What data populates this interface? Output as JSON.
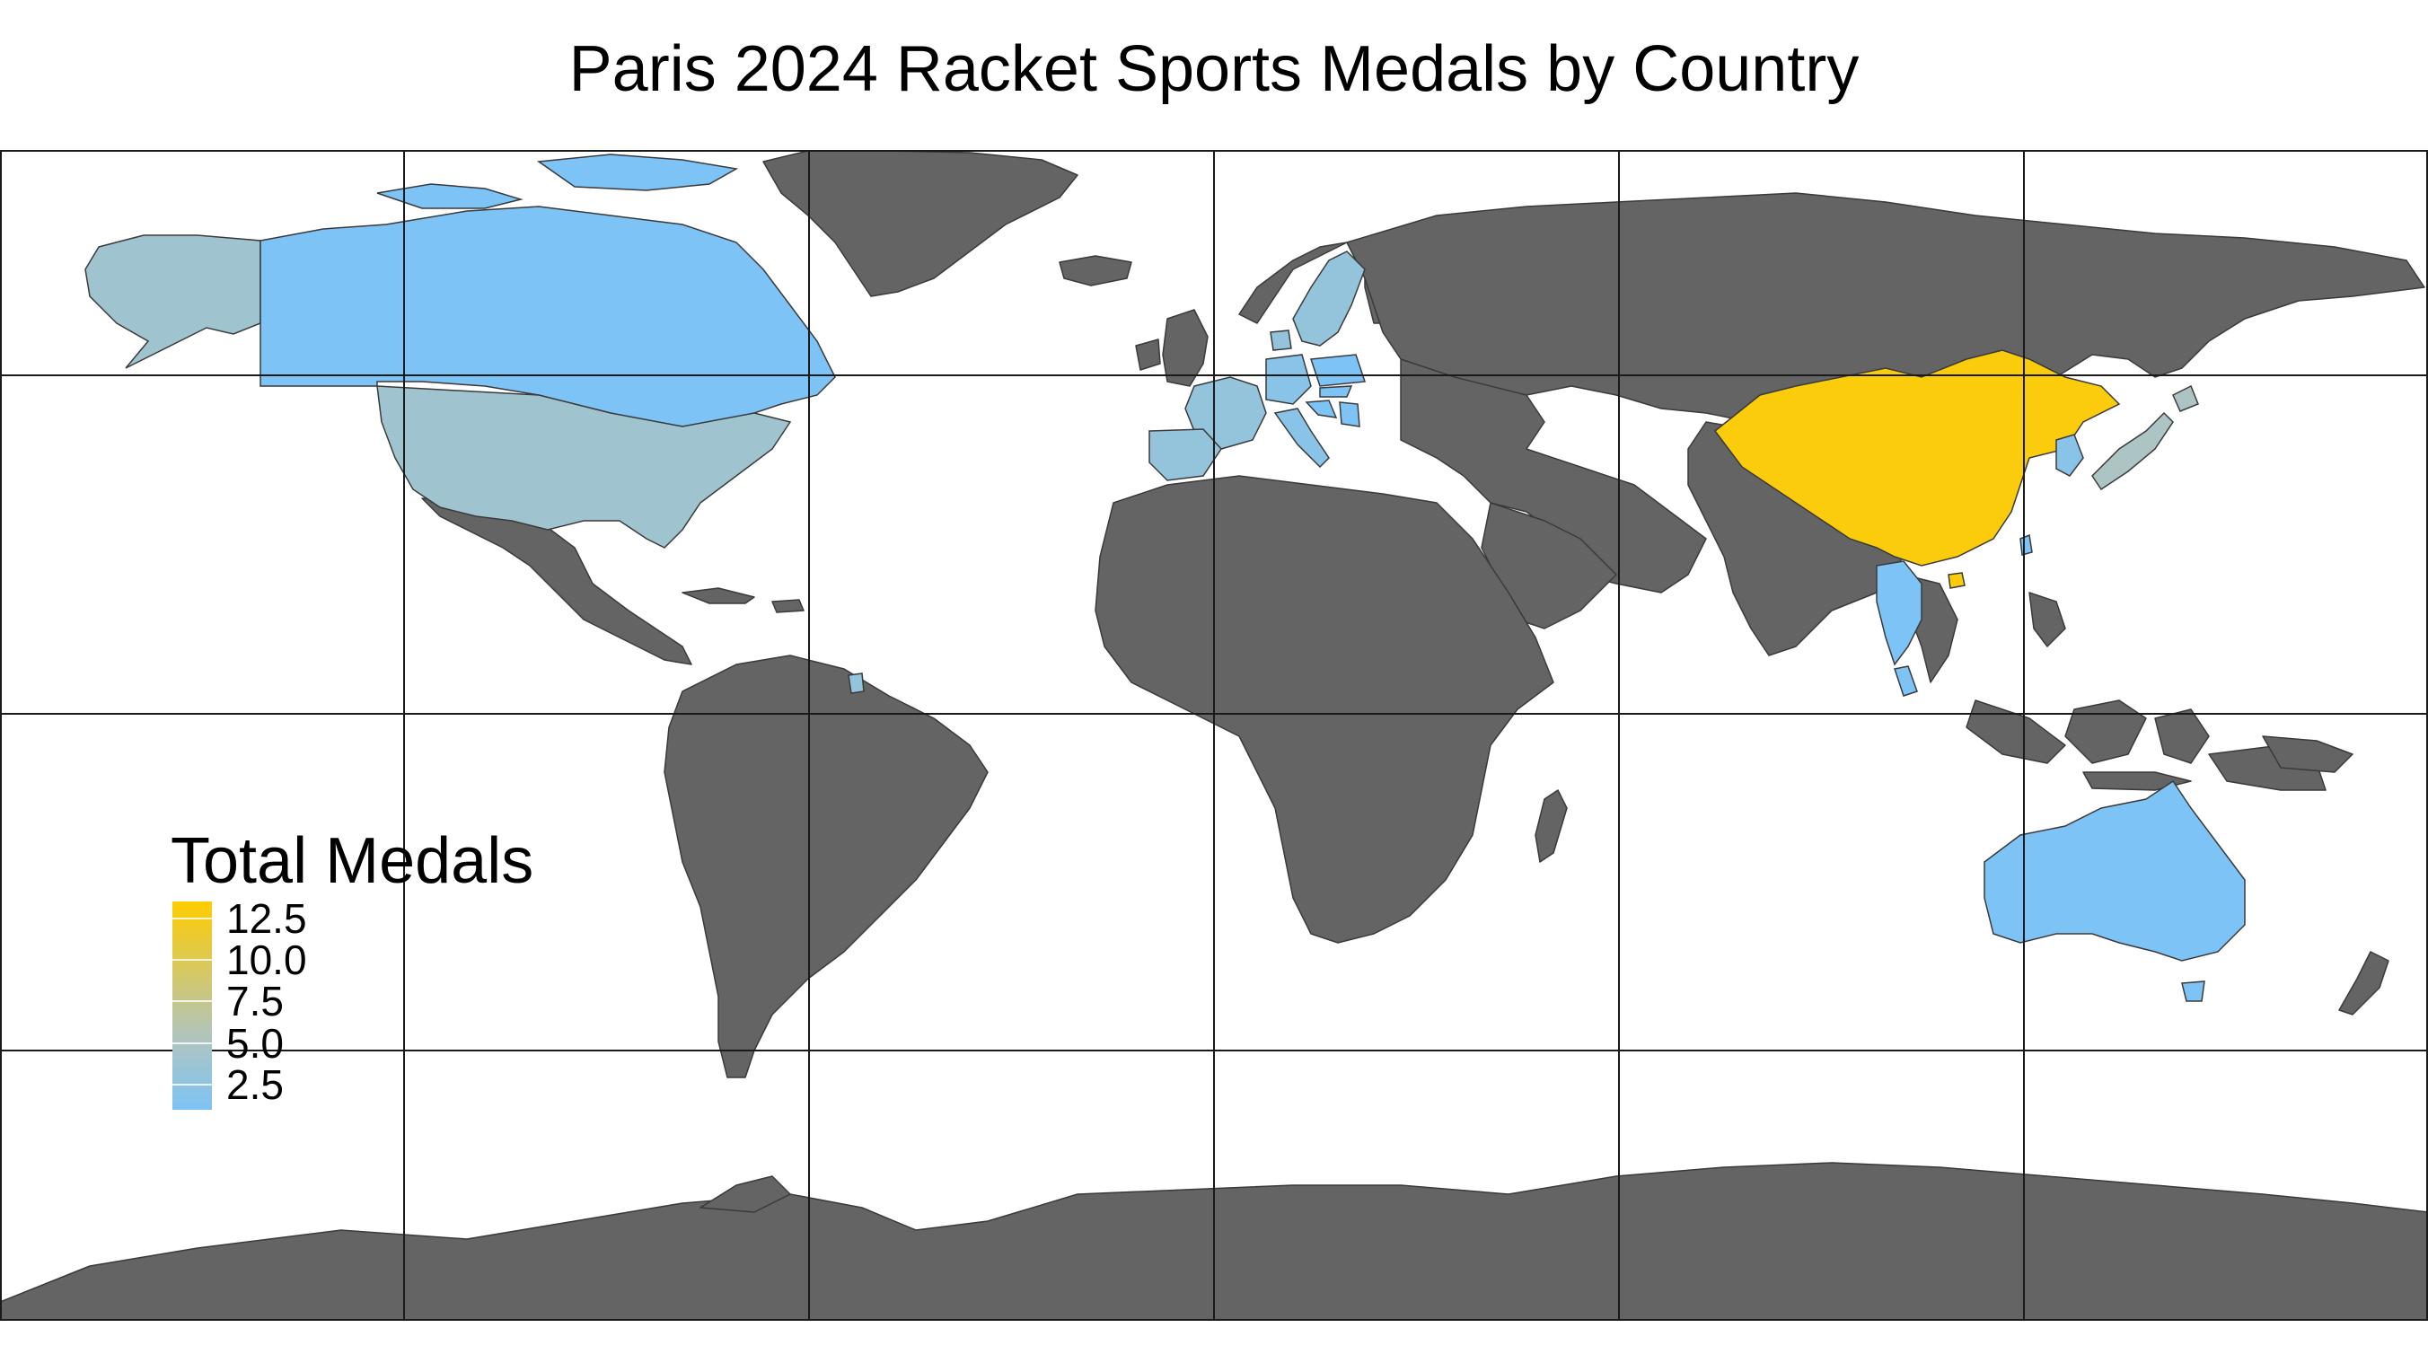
{
  "title": "Paris 2024 Racket Sports Medals by Country",
  "legend": {
    "title": "Total Medals",
    "ticks": [
      "12.5",
      "10.0",
      "7.5",
      "5.0",
      "2.5"
    ],
    "tick_values": [
      12.5,
      10.0,
      7.5,
      5.0,
      2.5
    ],
    "range": [
      1,
      13.5
    ],
    "low_color": "#7dc3f5",
    "high_color": "#ffcc00"
  },
  "colors": {
    "no_data": "#646464",
    "water": "#ffffff"
  },
  "chart_data": {
    "type": "choropleth",
    "projection": "equirectangular",
    "value_label": "Total Medals",
    "regions": [
      {
        "name": "China",
        "value": 13
      },
      {
        "name": "Japan",
        "value": 5
      },
      {
        "name": "South Korea",
        "value": 2
      },
      {
        "name": "United States",
        "value": 4
      },
      {
        "name": "Canada",
        "value": 1
      },
      {
        "name": "France",
        "value": 3
      },
      {
        "name": "Spain",
        "value": 3
      },
      {
        "name": "Germany",
        "value": 2
      },
      {
        "name": "Italy",
        "value": 2
      },
      {
        "name": "Sweden",
        "value": 3
      },
      {
        "name": "Denmark",
        "value": 3
      },
      {
        "name": "Poland",
        "value": 1
      },
      {
        "name": "Serbia",
        "value": 1
      },
      {
        "name": "Croatia",
        "value": 1
      },
      {
        "name": "Slovakia",
        "value": 1
      },
      {
        "name": "Thailand",
        "value": 1
      },
      {
        "name": "Malaysia",
        "value": 1
      },
      {
        "name": "Australia",
        "value": 1
      },
      {
        "name": "Chinese Taipei",
        "value": 1
      }
    ]
  }
}
